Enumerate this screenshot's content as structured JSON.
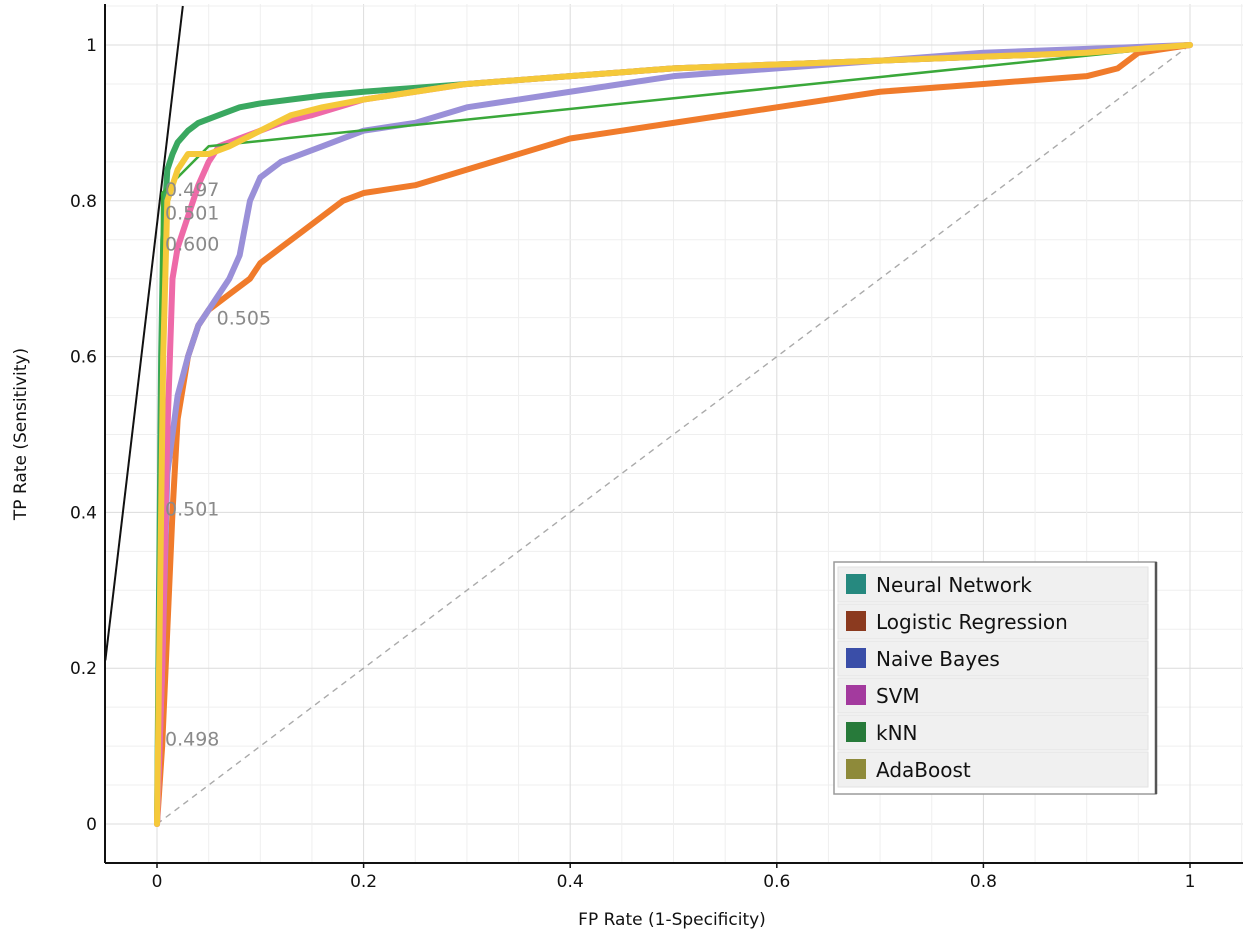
{
  "chart_data": {
    "type": "line",
    "title": "",
    "xlabel": "FP Rate (1-Specificity)",
    "ylabel": "TP Rate (Sensitivity)",
    "xlim": [
      -0.05,
      1.05
    ],
    "ylim": [
      -0.05,
      1.05
    ],
    "x_ticks": [
      0,
      0.2,
      0.4,
      0.6,
      0.8,
      1
    ],
    "x_tick_labels": [
      "0",
      "0.2",
      "0.4",
      "0.6",
      "0.8",
      "1"
    ],
    "y_ticks": [
      0,
      0.2,
      0.4,
      0.6,
      0.8,
      1
    ],
    "y_tick_labels": [
      "0",
      "0.2",
      "0.4",
      "0.6",
      "0.8",
      "1"
    ],
    "grid": true,
    "legend_position": "bottom-right",
    "diagonal": {
      "x": [
        0,
        1
      ],
      "y": [
        0,
        1
      ],
      "color": "#aaaaaa",
      "style": "dashed"
    },
    "iso_line": {
      "x": [
        -0.05,
        0.025
      ],
      "y": [
        0.21,
        1.05
      ],
      "color": "#111111"
    },
    "series": [
      {
        "name": "Neural Network",
        "legend_color": "#26897f",
        "line_color": "#3aa860",
        "x": [
          0,
          0.002,
          0.004,
          0.006,
          0.01,
          0.015,
          0.02,
          0.03,
          0.04,
          0.06,
          0.08,
          0.1,
          0.13,
          0.16,
          0.2,
          0.25,
          0.3,
          0.35,
          0.4,
          0.5,
          0.6,
          0.7,
          0.8,
          0.9,
          0.95,
          1
        ],
        "y": [
          0,
          0.3,
          0.6,
          0.75,
          0.84,
          0.86,
          0.875,
          0.89,
          0.9,
          0.91,
          0.92,
          0.925,
          0.93,
          0.935,
          0.94,
          0.945,
          0.95,
          0.955,
          0.96,
          0.97,
          0.975,
          0.98,
          0.985,
          0.99,
          0.995,
          1
        ]
      },
      {
        "name": "Logistic Regression",
        "legend_color": "#8b3a1f",
        "line_color": "#f07b2b",
        "x": [
          0,
          0.005,
          0.01,
          0.015,
          0.02,
          0.03,
          0.04,
          0.05,
          0.07,
          0.09,
          0.1,
          0.12,
          0.14,
          0.16,
          0.18,
          0.2,
          0.25,
          0.3,
          0.35,
          0.4,
          0.45,
          0.5,
          0.55,
          0.6,
          0.7,
          0.8,
          0.9,
          0.93,
          0.95,
          1
        ],
        "y": [
          0,
          0.1,
          0.25,
          0.4,
          0.52,
          0.6,
          0.64,
          0.66,
          0.68,
          0.7,
          0.72,
          0.74,
          0.76,
          0.78,
          0.8,
          0.81,
          0.82,
          0.84,
          0.86,
          0.88,
          0.89,
          0.9,
          0.91,
          0.92,
          0.94,
          0.95,
          0.96,
          0.97,
          0.99,
          1
        ]
      },
      {
        "name": "Naive Bayes",
        "legend_color": "#3a4ea8",
        "line_color": "#9a90d8",
        "x": [
          0,
          0.005,
          0.01,
          0.02,
          0.03,
          0.04,
          0.05,
          0.06,
          0.07,
          0.08,
          0.09,
          0.1,
          0.12,
          0.14,
          0.16,
          0.18,
          0.2,
          0.25,
          0.3,
          0.35,
          0.4,
          0.5,
          0.6,
          0.7,
          0.8,
          0.9,
          1
        ],
        "y": [
          0,
          0.2,
          0.45,
          0.55,
          0.6,
          0.64,
          0.66,
          0.68,
          0.7,
          0.73,
          0.8,
          0.83,
          0.85,
          0.86,
          0.87,
          0.88,
          0.89,
          0.9,
          0.92,
          0.93,
          0.94,
          0.96,
          0.97,
          0.98,
          0.99,
          0.995,
          1
        ]
      },
      {
        "name": "SVM",
        "legend_color": "#a33a9e",
        "line_color": "#ee6aa8",
        "x": [
          0,
          0.005,
          0.01,
          0.015,
          0.02,
          0.03,
          0.04,
          0.05,
          0.06,
          0.08,
          0.1,
          0.12,
          0.15,
          0.2,
          0.25,
          0.3,
          0.35,
          0.4,
          0.5,
          0.6,
          0.7,
          0.8,
          0.9,
          1
        ],
        "y": [
          0,
          0.2,
          0.5,
          0.7,
          0.74,
          0.78,
          0.82,
          0.85,
          0.87,
          0.88,
          0.89,
          0.9,
          0.91,
          0.93,
          0.94,
          0.95,
          0.955,
          0.96,
          0.97,
          0.975,
          0.98,
          0.985,
          0.99,
          1
        ]
      },
      {
        "name": "kNN",
        "legend_color": "#277a3a",
        "line_color": "#3aa83a",
        "x": [
          0,
          0.005,
          0.05,
          1
        ],
        "y": [
          0,
          0.81,
          0.87,
          1
        ]
      },
      {
        "name": "AdaBoost",
        "legend_color": "#8e8a3a",
        "line_color": "#f5c93a",
        "x": [
          0,
          0.003,
          0.006,
          0.01,
          0.02,
          0.03,
          0.05,
          0.07,
          0.1,
          0.13,
          0.16,
          0.2,
          0.25,
          0.3,
          0.35,
          0.4,
          0.5,
          0.6,
          0.7,
          0.8,
          0.9,
          1
        ],
        "y": [
          0,
          0.3,
          0.6,
          0.8,
          0.84,
          0.86,
          0.86,
          0.87,
          0.89,
          0.91,
          0.92,
          0.93,
          0.94,
          0.95,
          0.955,
          0.96,
          0.97,
          0.975,
          0.98,
          0.985,
          0.99,
          1
        ]
      }
    ],
    "threshold_labels": [
      {
        "text": "0.497",
        "x": 0.0,
        "y": 0.815
      },
      {
        "text": "0.501",
        "x": 0.0,
        "y": 0.785
      },
      {
        "text": "0.600",
        "x": 0.0,
        "y": 0.745
      },
      {
        "text": "0.505",
        "x": 0.05,
        "y": 0.65
      },
      {
        "text": "0.501",
        "x": 0.0,
        "y": 0.405
      },
      {
        "text": "0.498",
        "x": 0.0,
        "y": 0.11
      }
    ]
  }
}
